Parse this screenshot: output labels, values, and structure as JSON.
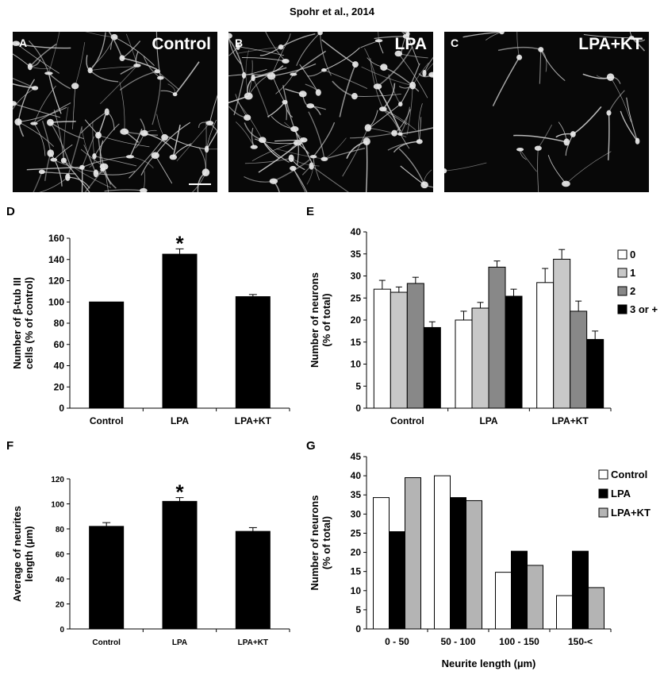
{
  "header": {
    "citation": "Spohr et al., 2014"
  },
  "micrographs": [
    {
      "panel": "A",
      "condition": "Control"
    },
    {
      "panel": "B",
      "condition": "LPA"
    },
    {
      "panel": "C",
      "condition": "LPA+KT"
    }
  ],
  "chart_data": [
    {
      "panel": "D",
      "type": "bar",
      "ylabel": [
        "Number of β-tub III",
        "cells (% of control)"
      ],
      "categories": [
        "Control",
        "LPA",
        "LPA+KT"
      ],
      "values": [
        100,
        145,
        105
      ],
      "errors": [
        0,
        5,
        2
      ],
      "significance": [
        "",
        "*",
        ""
      ],
      "ylim": [
        0,
        160
      ],
      "ytick_step": 20,
      "color": "#000000"
    },
    {
      "panel": "E",
      "type": "bar",
      "ylabel": [
        "Number of neurons",
        "(% of total)"
      ],
      "categories": [
        "Control",
        "LPA",
        "LPA+KT"
      ],
      "ylim": [
        0,
        40
      ],
      "ytick_step": 5,
      "legend_position": "right",
      "series": [
        {
          "name": "0",
          "color": "#ffffff",
          "values": [
            27,
            20,
            28.5
          ],
          "errors": [
            2,
            2,
            3.2
          ]
        },
        {
          "name": "1",
          "color": "#c8c8c8",
          "values": [
            26.3,
            22.7,
            33.8
          ],
          "errors": [
            1.2,
            1.3,
            2.2
          ]
        },
        {
          "name": "2",
          "color": "#888888",
          "values": [
            28.3,
            32,
            22
          ],
          "errors": [
            1.4,
            1.4,
            2.3
          ]
        },
        {
          "name": "3 or +",
          "color": "#000000",
          "values": [
            18.3,
            25.4,
            15.6
          ],
          "errors": [
            1.3,
            1.6,
            1.9
          ]
        }
      ]
    },
    {
      "panel": "F",
      "type": "bar",
      "ylabel": [
        "Average of neurites",
        "length (µm)"
      ],
      "categories": [
        "Control",
        "LPA",
        "LPA+KT"
      ],
      "values": [
        82,
        102,
        78
      ],
      "errors": [
        3,
        3,
        3
      ],
      "significance": [
        "",
        "*",
        ""
      ],
      "ylim": [
        0,
        120
      ],
      "ytick_step": 20,
      "color": "#000000"
    },
    {
      "panel": "G",
      "type": "bar",
      "ylabel": [
        "Number of neurons",
        "(% of total)"
      ],
      "xlabel": "Neurite length (µm)",
      "categories": [
        "0 - 50",
        "50 - 100",
        "100 - 150",
        "150-<"
      ],
      "ylim": [
        0,
        45
      ],
      "ytick_step": 5,
      "legend_position": "top-right",
      "series": [
        {
          "name": "Control",
          "color": "#ffffff",
          "values": [
            34.3,
            40,
            14.8,
            8.7
          ]
        },
        {
          "name": "LPA",
          "color": "#000000",
          "values": [
            25.4,
            34.3,
            20.3,
            20.3
          ]
        },
        {
          "name": "LPA+KT",
          "color": "#b4b4b4",
          "values": [
            39.5,
            33.5,
            16.6,
            10.8
          ]
        }
      ]
    }
  ]
}
